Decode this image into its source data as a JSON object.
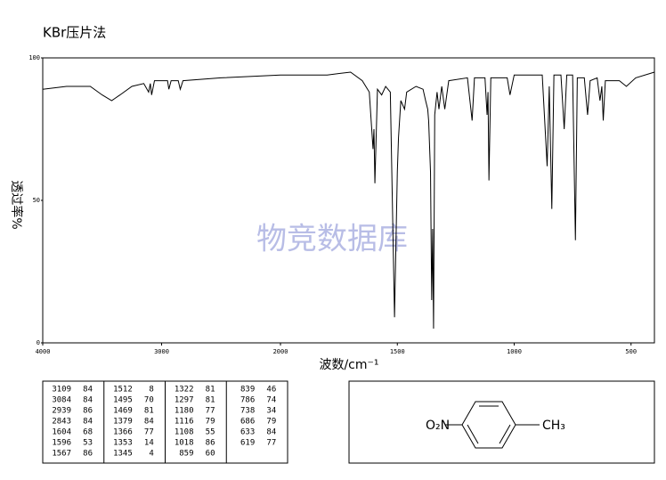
{
  "chart_data": {
    "type": "line",
    "title": "KBr压片法",
    "y_label": "透过率%",
    "x_label": "波数/cm⁻¹",
    "watermark": "物竞数据库",
    "xlim": [
      4000,
      400
    ],
    "ylim": [
      0,
      100
    ],
    "xticks": [
      4000,
      3000,
      2000,
      1500,
      1000,
      500
    ],
    "yticks": [
      0,
      50,
      100
    ],
    "series": [
      {
        "color": "#000000",
        "x": [
          4000,
          3800,
          3600,
          3500,
          3420,
          3350,
          3250,
          3150,
          3109,
          3095,
          3084,
          3060,
          2950,
          2939,
          2920,
          2860,
          2843,
          2820,
          2500,
          2000,
          1800,
          1700,
          1650,
          1620,
          1604,
          1600,
          1596,
          1585,
          1567,
          1550,
          1530,
          1512,
          1500,
          1495,
          1485,
          1469,
          1460,
          1420,
          1390,
          1379,
          1370,
          1366,
          1358,
          1353,
          1349,
          1345,
          1340,
          1330,
          1322,
          1310,
          1297,
          1280,
          1200,
          1180,
          1170,
          1125,
          1116,
          1112,
          1108,
          1100,
          1030,
          1018,
          1000,
          880,
          859,
          850,
          839,
          830,
          800,
          786,
          775,
          750,
          738,
          730,
          700,
          686,
          675,
          645,
          633,
          625,
          619,
          610,
          550,
          520,
          480,
          400
        ],
        "values": [
          89,
          90,
          90,
          87,
          85,
          87,
          90,
          91,
          88,
          91,
          87,
          92,
          92,
          89,
          92,
          92,
          89,
          92,
          93,
          94,
          94,
          95,
          92,
          88,
          68,
          75,
          56,
          89,
          87,
          90,
          88,
          9,
          60,
          72,
          85,
          82,
          88,
          90,
          89,
          85,
          82,
          78,
          60,
          15,
          40,
          5,
          80,
          88,
          82,
          90,
          82,
          92,
          93,
          78,
          93,
          93,
          80,
          88,
          57,
          93,
          93,
          87,
          94,
          94,
          62,
          90,
          47,
          94,
          94,
          75,
          94,
          94,
          36,
          93,
          93,
          80,
          92,
          93,
          85,
          90,
          78,
          92,
          92,
          90,
          93,
          95
        ]
      }
    ]
  },
  "peak_table": [
    [
      [
        3109,
        84
      ],
      [
        3084,
        84
      ],
      [
        2939,
        86
      ],
      [
        2843,
        84
      ],
      [
        1604,
        68
      ],
      [
        1596,
        53
      ],
      [
        1567,
        86
      ]
    ],
    [
      [
        1512,
        8
      ],
      [
        1495,
        70
      ],
      [
        1469,
        81
      ],
      [
        1379,
        84
      ],
      [
        1366,
        77
      ],
      [
        1353,
        14
      ],
      [
        1345,
        4
      ]
    ],
    [
      [
        1322,
        81
      ],
      [
        1297,
        81
      ],
      [
        1180,
        77
      ],
      [
        1116,
        79
      ],
      [
        1108,
        55
      ],
      [
        1018,
        86
      ],
      [
        859,
        60
      ]
    ],
    [
      [
        839,
        46
      ],
      [
        786,
        74
      ],
      [
        738,
        34
      ],
      [
        686,
        79
      ],
      [
        633,
        84
      ],
      [
        619,
        77
      ]
    ]
  ],
  "structure": {
    "left_group": "O₂N",
    "right_group": "CH₃"
  }
}
